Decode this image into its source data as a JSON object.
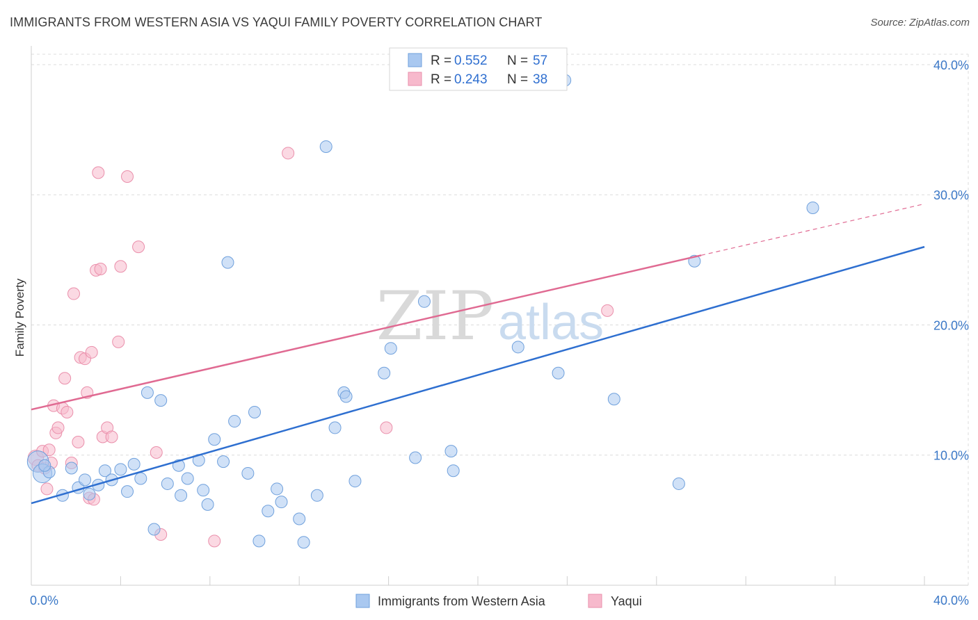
{
  "title": "IMMIGRANTS FROM WESTERN ASIA VS YAQUI FAMILY POVERTY CORRELATION CHART",
  "source": "Source: ZipAtlas.com",
  "watermark": {
    "zip": "ZIP",
    "atlas": "atlas"
  },
  "colors": {
    "blue_fill": "#a9c8f0",
    "blue_stroke": "#6fa0dc",
    "blue_line": "#2e6fd0",
    "pink_fill": "#f7b9cc",
    "pink_stroke": "#ea8fab",
    "pink_line": "#e06a92",
    "tick_text": "#3b78c7",
    "grid": "#dcdcdc"
  },
  "legend": {
    "rows": [
      {
        "r_label": "R =",
        "r_value": "0.552",
        "n_label": "N =",
        "n_value": "57"
      },
      {
        "r_label": "R =",
        "r_value": "0.243",
        "n_label": "N =",
        "n_value": "38"
      }
    ]
  },
  "chart_data": {
    "type": "scatter",
    "title": "IMMIGRANTS FROM WESTERN ASIA VS YAQUI FAMILY POVERTY CORRELATION CHART",
    "xlabel": "",
    "ylabel": "Family Poverty",
    "xlim": [
      0,
      40
    ],
    "ylim": [
      0,
      40.8
    ],
    "x_tick_labels": [
      "0.0%",
      "40.0%"
    ],
    "y_ticks": [
      10,
      20,
      30,
      40
    ],
    "y_tick_labels": [
      "10.0%",
      "20.0%",
      "30.0%",
      "40.0%"
    ],
    "grid": true,
    "legend_position": "top-center",
    "series": [
      {
        "name": "Immigrants from Western Asia",
        "color": "blue",
        "R": 0.552,
        "N": 57,
        "trend": {
          "x": [
            0,
            40
          ],
          "y": [
            6.3,
            26.0
          ],
          "dashed_from": null
        },
        "points": [
          [
            0.3,
            9.5,
            1.8
          ],
          [
            0.5,
            8.6,
            1.6
          ],
          [
            0.8,
            8.7,
            1.0
          ],
          [
            0.6,
            9.2,
            1.0
          ],
          [
            1.4,
            6.9,
            1.0
          ],
          [
            1.8,
            9.0,
            1.0
          ],
          [
            2.1,
            7.5,
            1.0
          ],
          [
            2.4,
            8.1,
            1.0
          ],
          [
            2.6,
            7.0,
            1.0
          ],
          [
            3.0,
            7.7,
            1.0
          ],
          [
            3.3,
            8.8,
            1.0
          ],
          [
            3.6,
            8.1,
            1.0
          ],
          [
            4.0,
            8.9,
            1.0
          ],
          [
            4.3,
            7.2,
            1.0
          ],
          [
            4.6,
            9.3,
            1.0
          ],
          [
            4.9,
            8.2,
            1.0
          ],
          [
            5.2,
            14.8,
            1.0
          ],
          [
            5.5,
            4.3,
            1.0
          ],
          [
            5.8,
            14.2,
            1.0
          ],
          [
            6.1,
            7.8,
            1.0
          ],
          [
            6.6,
            9.2,
            1.0
          ],
          [
            6.7,
            6.9,
            1.0
          ],
          [
            7.0,
            8.2,
            1.0
          ],
          [
            7.5,
            9.6,
            1.0
          ],
          [
            7.7,
            7.3,
            1.0
          ],
          [
            7.9,
            6.2,
            1.0
          ],
          [
            8.2,
            11.2,
            1.0
          ],
          [
            8.6,
            9.5,
            1.0
          ],
          [
            8.8,
            24.8,
            1.0
          ],
          [
            9.1,
            12.6,
            1.0
          ],
          [
            9.7,
            8.6,
            1.0
          ],
          [
            10.0,
            13.3,
            1.0
          ],
          [
            10.2,
            3.4,
            1.0
          ],
          [
            10.6,
            5.7,
            1.0
          ],
          [
            11.0,
            7.4,
            1.0
          ],
          [
            11.2,
            6.4,
            1.0
          ],
          [
            12.0,
            5.1,
            1.0
          ],
          [
            12.2,
            3.3,
            1.0
          ],
          [
            12.8,
            6.9,
            1.0
          ],
          [
            13.2,
            33.7,
            1.0
          ],
          [
            13.6,
            12.1,
            1.0
          ],
          [
            14.0,
            14.8,
            1.0
          ],
          [
            14.1,
            14.5,
            1.0
          ],
          [
            14.5,
            8.0,
            1.0
          ],
          [
            15.8,
            16.3,
            1.0
          ],
          [
            16.1,
            18.2,
            1.0
          ],
          [
            17.2,
            9.8,
            1.0
          ],
          [
            17.6,
            21.8,
            1.0
          ],
          [
            18.8,
            10.3,
            1.0
          ],
          [
            18.9,
            8.8,
            1.0
          ],
          [
            21.8,
            18.3,
            1.0
          ],
          [
            23.9,
            38.8,
            1.0
          ],
          [
            23.6,
            16.3,
            1.0
          ],
          [
            26.1,
            14.3,
            1.0
          ],
          [
            29.0,
            7.8,
            1.0
          ],
          [
            29.7,
            24.9,
            1.0
          ],
          [
            35.0,
            29.0,
            1.0
          ]
        ]
      },
      {
        "name": "Yaqui",
        "color": "pink",
        "R": 0.243,
        "N": 38,
        "trend": {
          "x": [
            0,
            40
          ],
          "y": [
            13.5,
            29.3
          ],
          "dashed_from": 30.0
        },
        "points": [
          [
            0.2,
            9.8,
            1.3
          ],
          [
            0.3,
            9.2,
            1.0
          ],
          [
            0.5,
            10.3,
            1.0
          ],
          [
            0.6,
            9.0,
            1.0
          ],
          [
            0.7,
            7.4,
            1.0
          ],
          [
            0.8,
            10.4,
            1.0
          ],
          [
            0.9,
            9.4,
            1.0
          ],
          [
            1.0,
            13.8,
            1.0
          ],
          [
            1.1,
            11.7,
            1.0
          ],
          [
            1.2,
            12.1,
            1.0
          ],
          [
            1.4,
            13.6,
            1.0
          ],
          [
            1.5,
            15.9,
            1.0
          ],
          [
            1.6,
            13.3,
            1.0
          ],
          [
            1.8,
            9.4,
            1.0
          ],
          [
            1.9,
            22.4,
            1.0
          ],
          [
            2.1,
            11.0,
            1.0
          ],
          [
            2.2,
            17.5,
            1.0
          ],
          [
            2.4,
            17.4,
            1.0
          ],
          [
            2.5,
            14.8,
            1.0
          ],
          [
            2.6,
            6.7,
            1.0
          ],
          [
            2.7,
            17.9,
            1.0
          ],
          [
            2.8,
            6.6,
            1.0
          ],
          [
            2.9,
            24.2,
            1.0
          ],
          [
            3.0,
            31.7,
            1.0
          ],
          [
            3.1,
            24.3,
            1.0
          ],
          [
            3.2,
            11.4,
            1.0
          ],
          [
            3.4,
            12.1,
            1.0
          ],
          [
            3.6,
            11.4,
            1.0
          ],
          [
            3.9,
            18.7,
            1.0
          ],
          [
            4.0,
            24.5,
            1.0
          ],
          [
            4.3,
            31.4,
            1.0
          ],
          [
            4.8,
            26.0,
            1.0
          ],
          [
            5.6,
            10.2,
            1.0
          ],
          [
            5.8,
            3.9,
            1.0
          ],
          [
            8.2,
            3.4,
            1.0
          ],
          [
            11.5,
            33.2,
            1.0
          ],
          [
            15.9,
            12.1,
            1.0
          ],
          [
            25.8,
            21.1,
            1.0
          ]
        ]
      }
    ]
  },
  "bottom_legend": {
    "items": [
      {
        "label": "Immigrants from Western Asia",
        "color": "blue"
      },
      {
        "label": "Yaqui",
        "color": "pink"
      }
    ]
  }
}
